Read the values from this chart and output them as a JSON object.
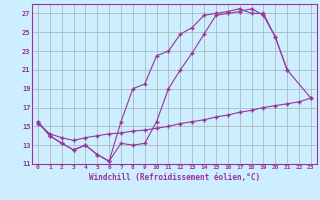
{
  "xlabel": "Windchill (Refroidissement éolien,°C)",
  "bg_color": "#cceeff",
  "line_color": "#993399",
  "grid_color": "#aabbbb",
  "xmin": -0.5,
  "xmax": 23.5,
  "ymin": 11,
  "ymax": 28,
  "yticks": [
    11,
    13,
    15,
    17,
    19,
    21,
    23,
    25,
    27
  ],
  "xticks": [
    0,
    1,
    2,
    3,
    4,
    5,
    6,
    7,
    8,
    9,
    10,
    11,
    12,
    13,
    14,
    15,
    16,
    17,
    18,
    19,
    20,
    21,
    22,
    23
  ],
  "line1_x": [
    0,
    1,
    2,
    3,
    4,
    5,
    6,
    7,
    8,
    9,
    10,
    11,
    12,
    13,
    14,
    15,
    16,
    17,
    18,
    19,
    20,
    21
  ],
  "line1_y": [
    15.5,
    14.0,
    13.2,
    12.5,
    13.0,
    12.0,
    11.3,
    15.5,
    19.0,
    19.5,
    22.5,
    23.0,
    24.8,
    25.5,
    26.8,
    27.0,
    27.2,
    27.5,
    27.0,
    27.0,
    24.5,
    21.0
  ],
  "line2_x": [
    0,
    1,
    2,
    3,
    4,
    5,
    6,
    7,
    8,
    9,
    10,
    11,
    12,
    13,
    14,
    15,
    16,
    17,
    18,
    19,
    20,
    21,
    23
  ],
  "line2_y": [
    15.5,
    14.0,
    13.2,
    12.5,
    13.0,
    12.0,
    11.3,
    13.2,
    13.0,
    13.2,
    15.5,
    19.0,
    21.0,
    22.8,
    24.8,
    26.8,
    27.0,
    27.2,
    27.5,
    26.8,
    24.5,
    21.0,
    18.0
  ],
  "line3_x": [
    0,
    1,
    2,
    3,
    4,
    5,
    6,
    7,
    8,
    9,
    10,
    11,
    12,
    13,
    14,
    15,
    16,
    17,
    18,
    19,
    20,
    21,
    22,
    23
  ],
  "line3_y": [
    15.3,
    14.2,
    13.8,
    13.5,
    13.8,
    14.0,
    14.2,
    14.3,
    14.5,
    14.6,
    14.8,
    15.0,
    15.3,
    15.5,
    15.7,
    16.0,
    16.2,
    16.5,
    16.7,
    17.0,
    17.2,
    17.4,
    17.6,
    18.0
  ]
}
